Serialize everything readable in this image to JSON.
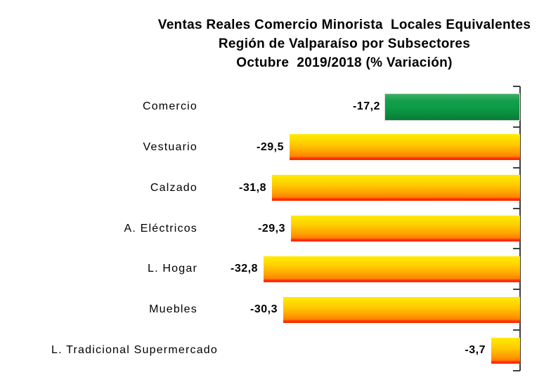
{
  "chart_data": {
    "type": "bar",
    "orientation": "horizontal",
    "title_lines": [
      "Ventas Reales Comercio Minorista  Locales Equivalentes",
      "Región de Valparaíso por Subsectores",
      "Octubre  2019/2018 (% Variación)"
    ],
    "categories": [
      "Comercio",
      "Vestuario",
      "Calzado",
      "A. Eléctricos",
      "L. Hogar",
      "Muebles",
      "L. Tradicional Supermercado"
    ],
    "values": [
      -17.2,
      -29.5,
      -31.8,
      -29.3,
      -32.8,
      -30.3,
      -3.7
    ],
    "value_labels": [
      "-17,2",
      "-29,5",
      "-31,8",
      "-29,3",
      "-32,8",
      "-30,3",
      "-3,7"
    ],
    "bar_styles": [
      "green",
      "warn",
      "warn",
      "warn",
      "warn",
      "warn",
      "warn"
    ],
    "xlim": [
      -35,
      0
    ],
    "axis_side": "right",
    "grid": false,
    "legend": false,
    "colors": {
      "background": "#ffffff",
      "text": "#000000",
      "axis": "#3f3f3f",
      "green_top": "#3fb063",
      "green_upper": "#15a04c",
      "green_mid": "#0b9b46",
      "green_bottom": "#0a7c37",
      "yellow_top": "#ffec00",
      "yellow_mid": "#ffcc00",
      "orange_mid": "#ffa200",
      "orange_deep": "#ff8200",
      "red_edge": "#ff2c00"
    }
  }
}
